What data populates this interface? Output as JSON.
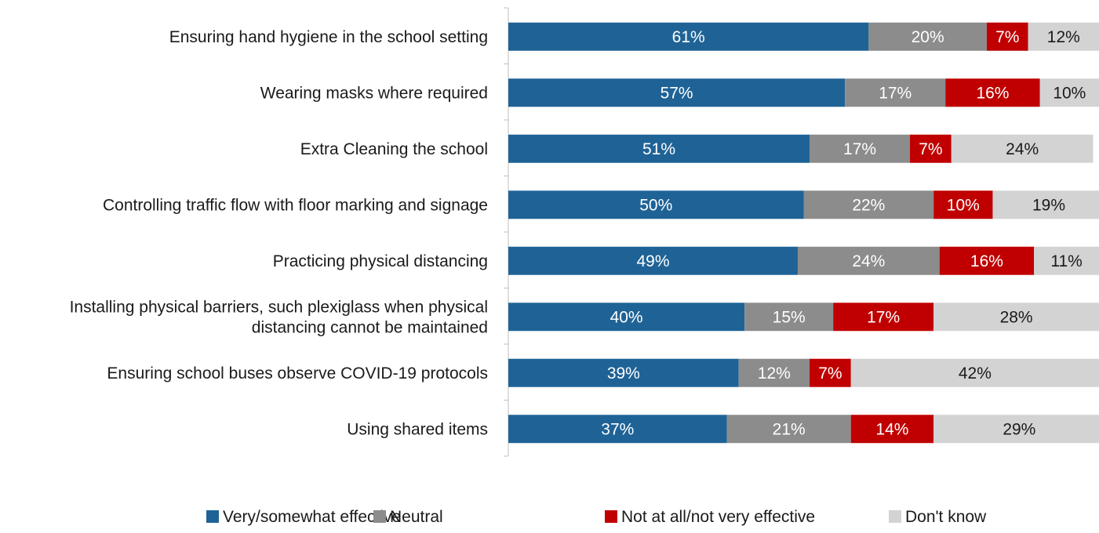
{
  "chart_data": {
    "type": "bar",
    "orientation": "horizontal",
    "stacked": true,
    "percent_stacked": true,
    "categories": [
      "Ensuring hand hygiene in the school setting",
      "Wearing masks where required",
      "Extra Cleaning the school",
      "Controlling traffic flow with floor marking and signage",
      "Practicing physical distancing",
      "Installing physical barriers, such plexiglass when physical distancing cannot be maintained",
      "Ensuring school buses observe COVID-19 protocols",
      "Using shared items"
    ],
    "category_lines": [
      [
        "Ensuring hand hygiene in the school setting"
      ],
      [
        "Wearing masks where required"
      ],
      [
        "Extra Cleaning the school"
      ],
      [
        "Controlling traffic flow with floor marking and signage"
      ],
      [
        "Practicing physical distancing"
      ],
      [
        "Installing physical barriers, such plexiglass when physical",
        "distancing cannot be maintained"
      ],
      [
        "Ensuring school buses observe COVID-19 protocols"
      ],
      [
        "Using shared items"
      ]
    ],
    "series": [
      {
        "name": "Very/somewhat effective",
        "color": "#1f6396",
        "label_color": "#ffffff",
        "values": [
          61,
          57,
          51,
          50,
          49,
          40,
          39,
          37
        ],
        "labels": [
          "61%",
          "57%",
          "51%",
          "50%",
          "49%",
          "40%",
          "39%",
          "37%"
        ]
      },
      {
        "name": "Neutral",
        "color": "#8c8c8c",
        "label_color": "#ffffff",
        "values": [
          20,
          17,
          17,
          22,
          24,
          15,
          12,
          21
        ],
        "labels": [
          "20%",
          "17%",
          "17%",
          "22%",
          "24%",
          "15%",
          "12%",
          "21%"
        ]
      },
      {
        "name": "Not at all/not very effective",
        "color": "#c00000",
        "label_color": "#ffffff",
        "values": [
          7,
          16,
          7,
          10,
          16,
          17,
          7,
          14
        ],
        "labels": [
          "7%",
          "16%",
          "7%",
          "10%",
          "16%",
          "17%",
          "7%",
          "14%"
        ]
      },
      {
        "name": "Don't know",
        "color": "#d3d3d3",
        "label_color": "#1a1a1a",
        "values": [
          12,
          10,
          24,
          19,
          11,
          28,
          42,
          29
        ],
        "labels": [
          "12%",
          "10%",
          "24%",
          "19%",
          "11%",
          "28%",
          "42%",
          "29%"
        ]
      }
    ],
    "xlim": [
      0,
      100
    ],
    "grid": false,
    "legend_position": "bottom"
  }
}
